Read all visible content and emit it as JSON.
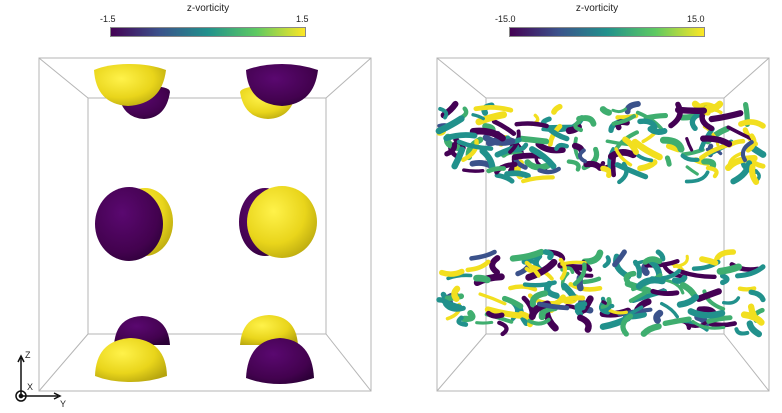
{
  "left_panel": {
    "colorbar": {
      "title": "z-vorticity",
      "min_label": "-1.5",
      "max_label": "1.5"
    }
  },
  "right_panel": {
    "colorbar": {
      "title": "z-vorticity",
      "min_label": "-15.0",
      "max_label": "15.0"
    }
  },
  "axes_triad": {
    "z_label": "Z",
    "x_label": "X",
    "y_label": "Y"
  },
  "colors": {
    "purple": "#440154",
    "yellow": "#f2df1f",
    "teal": "#21918c",
    "green": "#3fae6f",
    "dark_blue": "#3b528b"
  }
}
